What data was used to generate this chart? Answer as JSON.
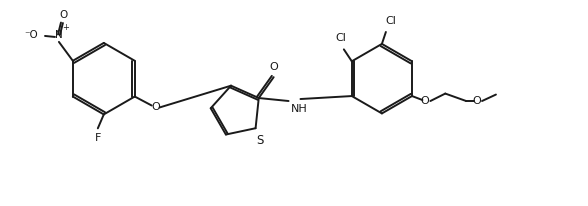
{
  "background": "#ffffff",
  "line_color": "#1a1a1a",
  "lw": 1.4,
  "fig_width": 5.88,
  "fig_height": 2.06,
  "dpi": 100,
  "xlim": [
    0,
    11.76
  ],
  "ylim": [
    0,
    4.12
  ]
}
